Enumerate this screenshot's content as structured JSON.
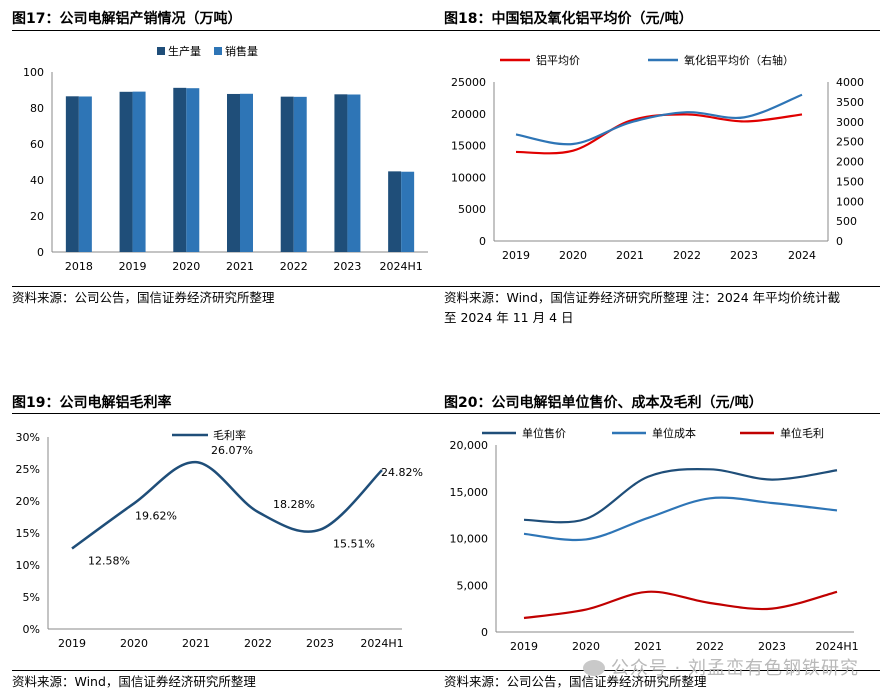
{
  "charts": [
    {
      "figure_title": "图17：公司电解铝产销情况（万吨）",
      "source": "资料来源：公司公告，国信证券经济研究所整理",
      "legend": [
        "生产量",
        "销售量"
      ],
      "colors": [
        "#1f4e79",
        "#2e75b6"
      ],
      "ytick_labels": [
        "0",
        "20",
        "40",
        "60",
        "80",
        "100"
      ]
    },
    {
      "figure_title": "图18：中国铝及氧化铝平均价（元/吨）",
      "source_lines": [
        "资料来源：Wind，国信证券经济研究所整理 注：2024 年平均价统计截",
        "至 2024 年 11 月 4 日"
      ],
      "legend": [
        "铝平均价",
        "氧化铝平均价（右轴）"
      ],
      "colors": [
        "#e00000",
        "#2e75b6"
      ],
      "ytick_labels": [
        "0",
        "5000",
        "10000",
        "15000",
        "20000",
        "25000"
      ],
      "y2tick_labels": [
        "0",
        "500",
        "1000",
        "1500",
        "2000",
        "2500",
        "3000",
        "3500",
        "4000"
      ]
    },
    {
      "figure_title": "图19：公司电解铝毛利率",
      "source": "资料来源：Wind，国信证券经济研究所整理",
      "legend": [
        "毛利率"
      ],
      "colors": [
        "#1f4e79"
      ],
      "ytick_labels": [
        "0%",
        "5%",
        "10%",
        "15%",
        "20%",
        "25%",
        "30%"
      ],
      "value_labels": [
        "12.58%",
        "19.62%",
        "26.07%",
        "18.28%",
        "15.51%",
        "24.82%"
      ]
    },
    {
      "figure_title": "图20：公司电解铝单位售价、成本及毛利（元/吨）",
      "source": "资料来源：公司公告，国信证券经济研究所整理",
      "legend": [
        "单位售价",
        "单位成本",
        "单位毛利"
      ],
      "colors": [
        "#1f4e79",
        "#2e75b6",
        "#c00000"
      ],
      "ytick_labels": [
        "0",
        "5,000",
        "10,000",
        "15,000",
        "20,000"
      ]
    }
  ],
  "chart_data": [
    {
      "type": "bar",
      "title": "公司电解铝产销情况（万吨）",
      "categories": [
        "2018",
        "2019",
        "2020",
        "2021",
        "2022",
        "2023",
        "2024H1"
      ],
      "series": [
        {
          "name": "生产量",
          "values": [
            86.5,
            89.0,
            91.2,
            87.8,
            86.3,
            87.6,
            44.8
          ]
        },
        {
          "name": "销售量",
          "values": [
            86.4,
            89.1,
            91.0,
            87.9,
            86.2,
            87.5,
            44.6
          ]
        }
      ],
      "ylim": [
        0,
        100
      ],
      "legend_position": "top-right"
    },
    {
      "type": "line",
      "title": "中国铝及氧化铝平均价（元/吨）",
      "categories": [
        "2019",
        "2020",
        "2021",
        "2022",
        "2023",
        "2024"
      ],
      "series": [
        {
          "name": "铝平均价",
          "axis": "left",
          "values": [
            14000,
            14200,
            18900,
            19900,
            18800,
            19900
          ]
        },
        {
          "name": "氧化铝平均价（右轴）",
          "axis": "right",
          "values": [
            2680,
            2440,
            2980,
            3240,
            3110,
            3680
          ]
        }
      ],
      "ylim": [
        0,
        25000
      ],
      "y2lim": [
        0,
        4000
      ],
      "legend_position": "top"
    },
    {
      "type": "line",
      "title": "公司电解铝毛利率",
      "categories": [
        "2019",
        "2020",
        "2021",
        "2022",
        "2023",
        "2024H1"
      ],
      "series": [
        {
          "name": "毛利率",
          "values": [
            12.58,
            19.62,
            26.07,
            18.28,
            15.51,
            24.82
          ]
        }
      ],
      "ylim": [
        0,
        30
      ],
      "unit": "%",
      "legend_position": "top"
    },
    {
      "type": "line",
      "title": "公司电解铝单位售价、成本及毛利（元/吨）",
      "categories": [
        "2019",
        "2020",
        "2021",
        "2022",
        "2023",
        "2024H1"
      ],
      "series": [
        {
          "name": "单位售价",
          "values": [
            12000,
            12100,
            16600,
            17400,
            16300,
            17300
          ]
        },
        {
          "name": "单位成本",
          "values": [
            10500,
            9900,
            12200,
            14300,
            13800,
            13000
          ]
        },
        {
          "name": "单位毛利",
          "values": [
            1500,
            2400,
            4300,
            3100,
            2500,
            4300
          ]
        }
      ],
      "ylim": [
        0,
        20000
      ],
      "legend_position": "top"
    }
  ],
  "watermark": "公众号 · 刘孟峦有色钢铁研究"
}
